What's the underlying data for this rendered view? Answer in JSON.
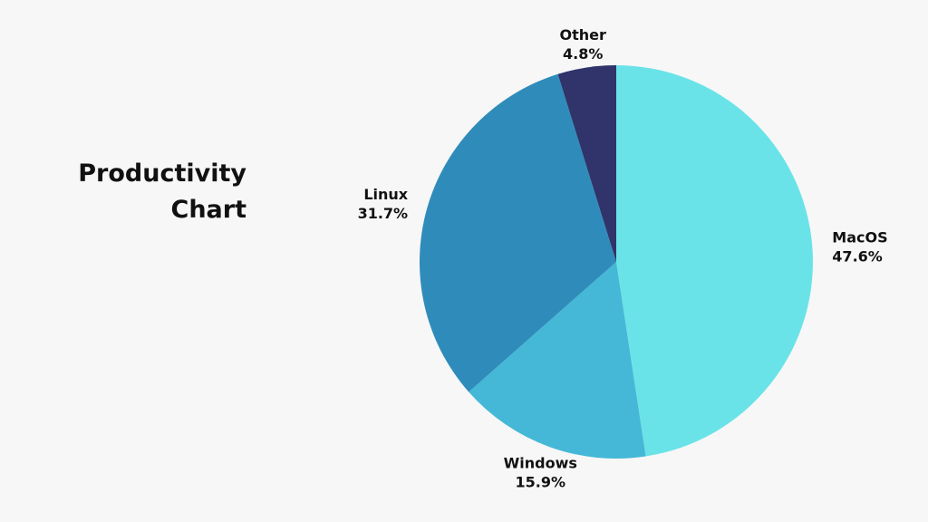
{
  "chart_data": {
    "type": "pie",
    "title": "Productivity Chart",
    "title_lines": [
      "Productivity",
      "Chart"
    ],
    "categories": [
      "MacOS",
      "Windows",
      "Linux",
      "Other"
    ],
    "values": [
      47.6,
      15.9,
      31.7,
      4.8
    ],
    "value_labels": [
      "47.6%",
      "15.9%",
      "31.7%",
      "4.8%"
    ],
    "colors": [
      "#6ae3e8",
      "#44b8d6",
      "#2f8cba",
      "#30346b"
    ],
    "start": "12 o'clock",
    "direction": "clockwise",
    "legend": "none",
    "labels": "outside"
  }
}
